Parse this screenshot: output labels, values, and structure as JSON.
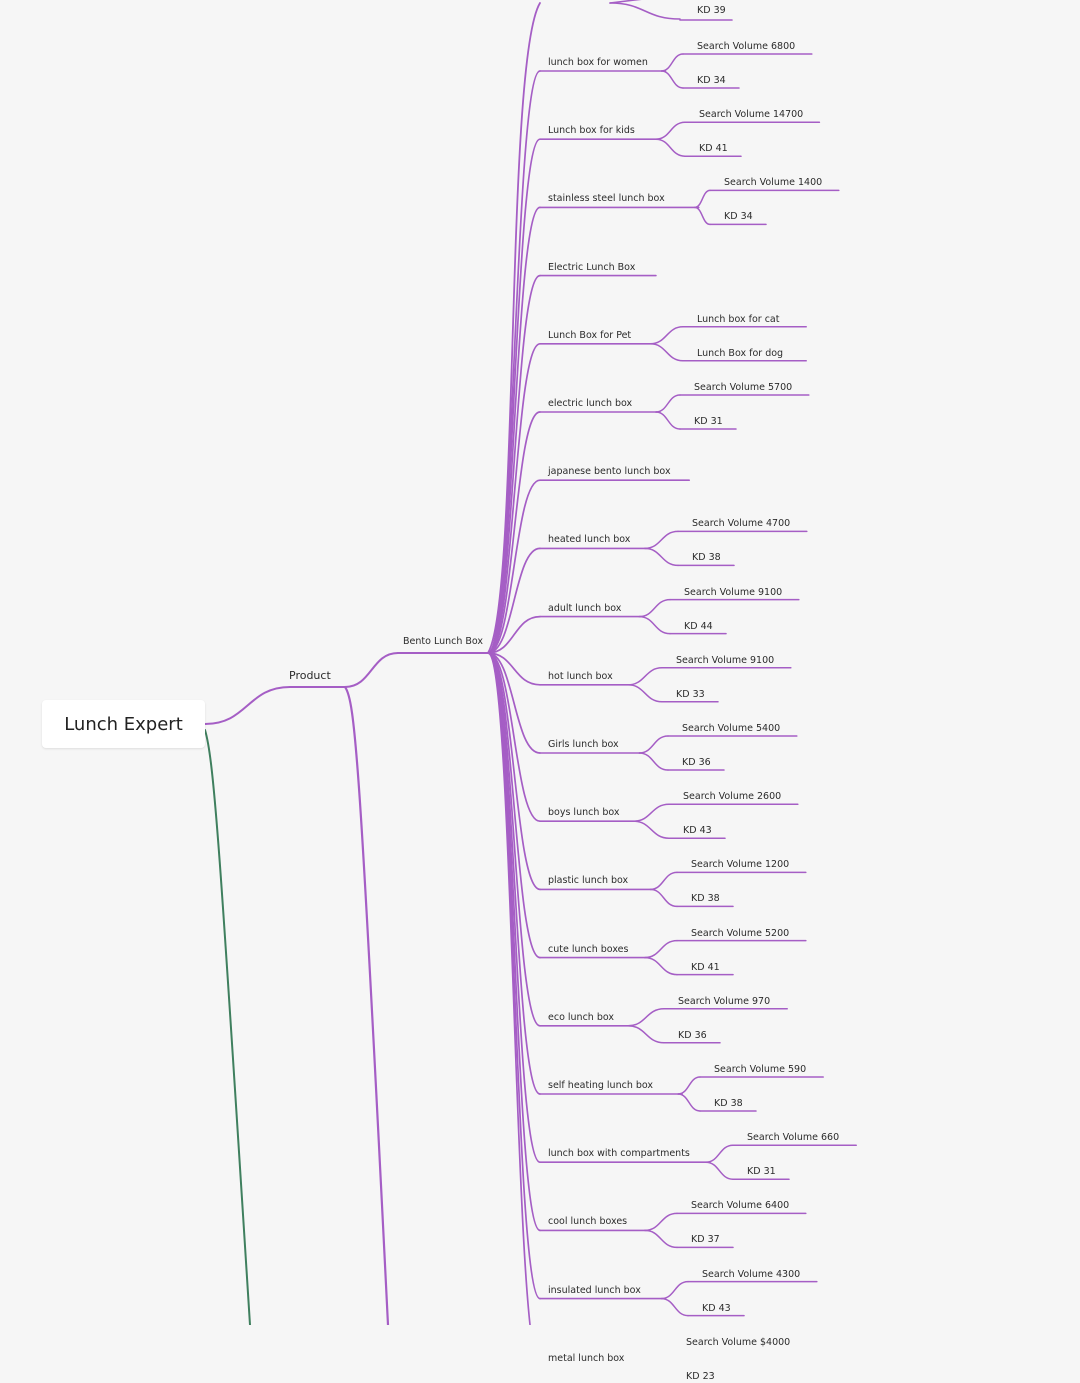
{
  "root": {
    "label": "Lunch Expert"
  },
  "product": {
    "label": "Product"
  },
  "category": {
    "label": "Bento Lunch Box"
  },
  "colors": {
    "branch": "#a55ec5",
    "root_branch": "#3f7f5e",
    "node_bg": "#ffffff",
    "background": "#f6f6f6"
  },
  "first_top_child": "KD 39",
  "keywords": [
    {
      "label": "lunch box for women",
      "children": [
        "Search Volume 6800",
        "KD 34"
      ]
    },
    {
      "label": "Lunch box for kids",
      "children": [
        "Search Volume 14700",
        "KD 41"
      ]
    },
    {
      "label": "stainless steel lunch box",
      "children": [
        "Search Volume 1400",
        "KD 34"
      ]
    },
    {
      "label": "Electric Lunch Box",
      "children": []
    },
    {
      "label": "Lunch Box for Pet",
      "children": [
        "Lunch box for cat",
        "Lunch Box for dog"
      ]
    },
    {
      "label": "electric lunch box",
      "children": [
        "Search Volume 5700",
        "KD 31"
      ]
    },
    {
      "label": "japanese bento lunch box",
      "children": []
    },
    {
      "label": "heated lunch box",
      "children": [
        "Search Volume 4700",
        "KD 38"
      ]
    },
    {
      "label": "adult lunch box",
      "children": [
        "Search Volume 9100",
        "KD 44"
      ]
    },
    {
      "label": "hot lunch box",
      "children": [
        "Search Volume 9100",
        "KD 33"
      ]
    },
    {
      "label": "Girls lunch box",
      "children": [
        "Search Volume 5400",
        "KD 36"
      ]
    },
    {
      "label": "boys lunch box",
      "children": [
        "Search Volume 2600",
        "KD 43"
      ]
    },
    {
      "label": "plastic lunch box",
      "children": [
        "Search Volume 1200",
        "KD 38"
      ]
    },
    {
      "label": "cute lunch boxes",
      "children": [
        "Search Volume 5200",
        "KD 41"
      ]
    },
    {
      "label": "eco lunch box",
      "children": [
        "Search Volume 970",
        "KD 36"
      ]
    },
    {
      "label": "self heating lunch box",
      "children": [
        "Search Volume 590",
        "KD 38"
      ]
    },
    {
      "label": "lunch box with compartments",
      "children": [
        "Search Volume 660",
        "KD 31"
      ]
    },
    {
      "label": "cool lunch boxes",
      "children": [
        "Search Volume 6400",
        "KD 37"
      ]
    },
    {
      "label": "insulated lunch box",
      "children": [
        "Search Volume 4300",
        "KD 43"
      ]
    },
    {
      "label": "metal lunch box",
      "children": [
        "Search Volume $4000",
        "KD 23"
      ]
    }
  ]
}
